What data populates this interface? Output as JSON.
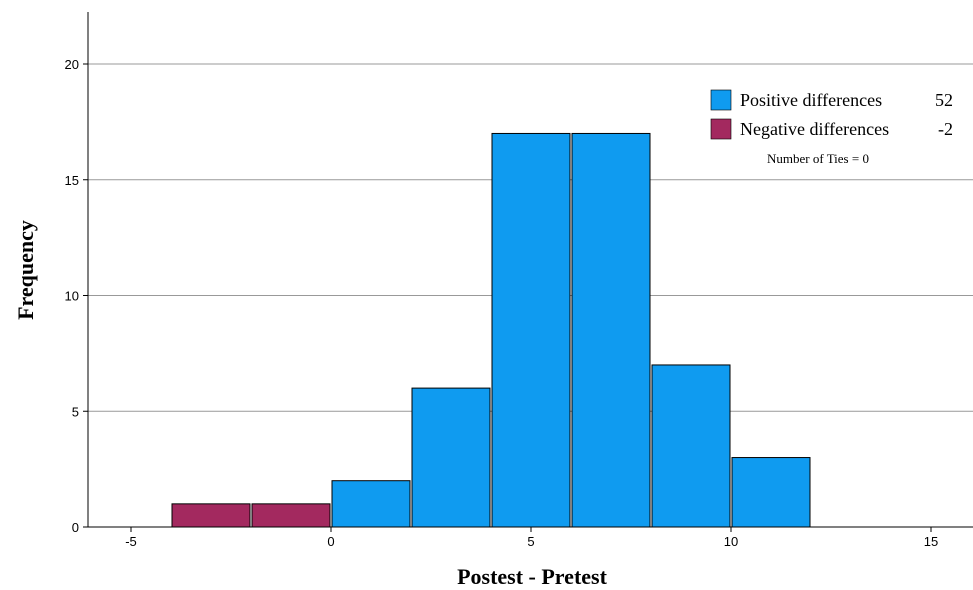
{
  "chart_data": {
    "type": "bar",
    "xlabel": "Postest - Pretest",
    "ylabel": "Frequency",
    "xlim": [
      -5.5,
      16
    ],
    "ylim": [
      0,
      22
    ],
    "x_ticks": [
      "-5",
      "0",
      "5",
      "10",
      "15"
    ],
    "x_tick_values": [
      -5,
      0,
      5,
      10,
      15
    ],
    "y_ticks": [
      "0",
      "5",
      "10",
      "15",
      "20"
    ],
    "y_tick_values": [
      0,
      5,
      10,
      15,
      20
    ],
    "grid": true,
    "series": [
      {
        "name": "Negative differences",
        "color": "#A3295F",
        "bins": [
          {
            "x0": -4,
            "x1": -2,
            "value": 1
          },
          {
            "x0": -2,
            "x1": 0,
            "value": 1
          }
        ]
      },
      {
        "name": "Positive differences",
        "color": "#0F9BF0",
        "bins": [
          {
            "x0": 0,
            "x1": 2,
            "value": 2
          },
          {
            "x0": 2,
            "x1": 4,
            "value": 6
          },
          {
            "x0": 4,
            "x1": 6,
            "value": 17
          },
          {
            "x0": 6,
            "x1": 8,
            "value": 17
          },
          {
            "x0": 8,
            "x1": 10,
            "value": 7
          },
          {
            "x0": 10,
            "x1": 12,
            "value": 3
          }
        ]
      }
    ],
    "legend": {
      "position": "top-right",
      "items": [
        {
          "label": "Positive differences",
          "count": "52",
          "color": "#0F9BF0"
        },
        {
          "label": "Negative differences",
          "count": "-2",
          "color": "#A3295F"
        }
      ],
      "note": "Number of Ties = 0"
    }
  }
}
